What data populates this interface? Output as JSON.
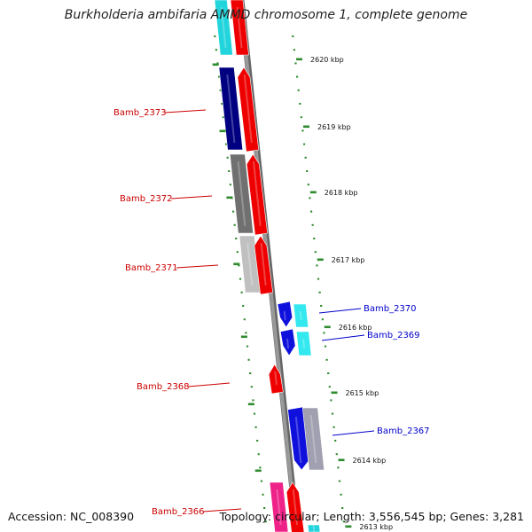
{
  "title": "Burkholderia ambifaria AMMD chromosome 1, complete genome",
  "footer": {
    "accession": "Accession: NC_008390",
    "topology": "Topology: circular; Length: 3,556,545 bp; Genes: 3,281"
  },
  "colors": {
    "backbone": "#999999",
    "tick": "#2e8b2e",
    "label_red": "#cc0000",
    "label_blue": "#0000cc"
  },
  "scale": {
    "unit": "kbp",
    "ticks": [
      {
        "label": "2620 kbp"
      },
      {
        "label": "2619 kbp"
      },
      {
        "label": "2618 kbp"
      },
      {
        "label": "2617 kbp"
      },
      {
        "label": "2616 kbp"
      },
      {
        "label": "2615 kbp"
      },
      {
        "label": "2614 kbp"
      },
      {
        "label": "2613 kbp"
      }
    ]
  },
  "genes": [
    {
      "label": "Bamb_2373",
      "color": "#cc0000"
    },
    {
      "label": "Bamb_2372",
      "color": "#cc0000"
    },
    {
      "label": "Bamb_2371",
      "color": "#cc0000"
    },
    {
      "label": "Bamb_2370",
      "color": "#0000cc"
    },
    {
      "label": "Bamb_2369",
      "color": "#0000cc"
    },
    {
      "label": "Bamb_2368",
      "color": "#cc0000"
    },
    {
      "label": "Bamb_2367",
      "color": "#0000cc"
    },
    {
      "label": "Bamb_2366",
      "color": "#cc0000"
    }
  ]
}
